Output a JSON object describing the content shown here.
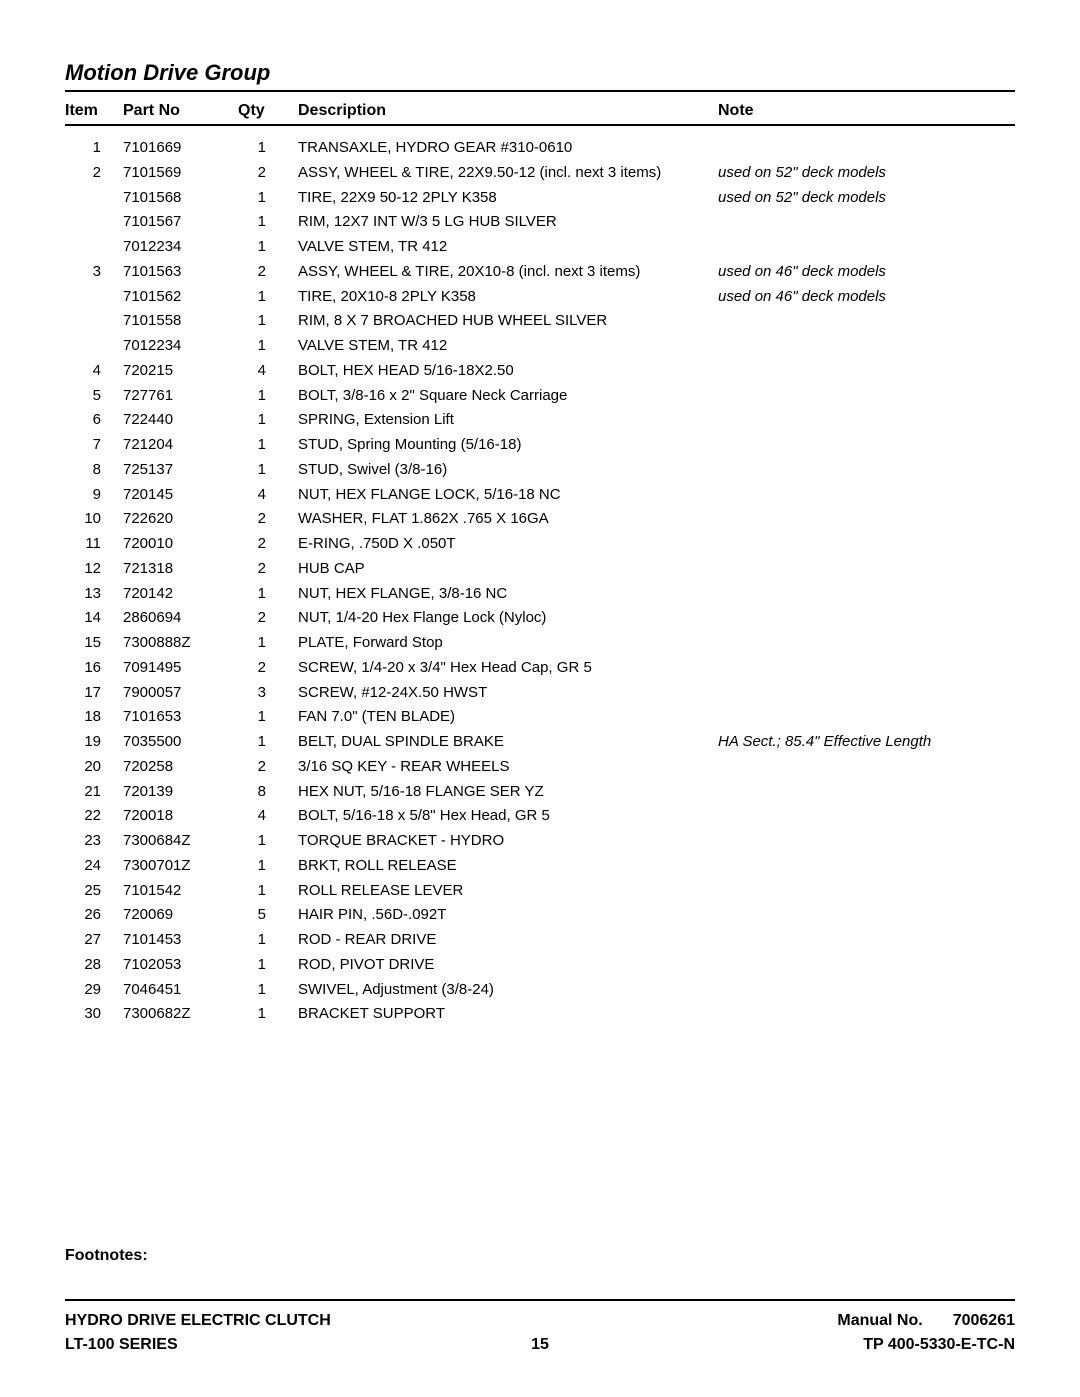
{
  "title": "Motion Drive Group",
  "columns": {
    "item": "Item",
    "partno": "Part No",
    "qty": "Qty",
    "description": "Description",
    "note": "Note"
  },
  "rows": [
    {
      "item": "1",
      "partno": "7101669",
      "qty": "1",
      "desc": "TRANSAXLE, HYDRO GEAR #310-0610",
      "note": ""
    },
    {
      "item": "2",
      "partno": "7101569",
      "qty": "2",
      "desc": "ASSY, WHEEL & TIRE, 22X9.50-12 (incl. next 3 items)",
      "note": "used on 52\" deck models"
    },
    {
      "item": "",
      "partno": "7101568",
      "qty": "1",
      "desc": "TIRE, 22X9 50-12 2PLY K358",
      "note": "used on 52\" deck models"
    },
    {
      "item": "",
      "partno": "7101567",
      "qty": "1",
      "desc": "RIM, 12X7 INT W/3 5 LG HUB SILVER",
      "note": ""
    },
    {
      "item": "",
      "partno": "7012234",
      "qty": "1",
      "desc": "VALVE STEM, TR 412",
      "note": ""
    },
    {
      "item": "3",
      "partno": "7101563",
      "qty": "2",
      "desc": "ASSY, WHEEL & TIRE, 20X10-8 (incl. next 3 items)",
      "note": "used on 46\" deck models"
    },
    {
      "item": "",
      "partno": "7101562",
      "qty": "1",
      "desc": "TIRE, 20X10-8 2PLY K358",
      "note": "used on 46\" deck models"
    },
    {
      "item": "",
      "partno": "7101558",
      "qty": "1",
      "desc": "RIM, 8 X 7 BROACHED HUB WHEEL SILVER",
      "note": ""
    },
    {
      "item": "",
      "partno": "7012234",
      "qty": "1",
      "desc": "VALVE STEM, TR 412",
      "note": ""
    },
    {
      "item": "4",
      "partno": "720215",
      "qty": "4",
      "desc": "BOLT, HEX HEAD 5/16-18X2.50",
      "note": ""
    },
    {
      "item": "5",
      "partno": "727761",
      "qty": "1",
      "desc": "BOLT, 3/8-16 x 2\" Square Neck Carriage",
      "note": ""
    },
    {
      "item": "6",
      "partno": "722440",
      "qty": "1",
      "desc": "SPRING, Extension Lift",
      "note": ""
    },
    {
      "item": "7",
      "partno": "721204",
      "qty": "1",
      "desc": "STUD, Spring Mounting (5/16-18)",
      "note": ""
    },
    {
      "item": "8",
      "partno": "725137",
      "qty": "1",
      "desc": "STUD, Swivel (3/8-16)",
      "note": ""
    },
    {
      "item": "9",
      "partno": "720145",
      "qty": "4",
      "desc": "NUT, HEX FLANGE LOCK, 5/16-18 NC",
      "note": ""
    },
    {
      "item": "10",
      "partno": "722620",
      "qty": "2",
      "desc": "WASHER, FLAT 1.862X .765 X 16GA",
      "note": ""
    },
    {
      "item": "11",
      "partno": "720010",
      "qty": "2",
      "desc": "E-RING, .750D X .050T",
      "note": ""
    },
    {
      "item": "12",
      "partno": "721318",
      "qty": "2",
      "desc": "HUB CAP",
      "note": ""
    },
    {
      "item": "13",
      "partno": "720142",
      "qty": "1",
      "desc": "NUT, HEX FLANGE, 3/8-16 NC",
      "note": ""
    },
    {
      "item": "14",
      "partno": "2860694",
      "qty": "2",
      "desc": "NUT, 1/4-20 Hex Flange Lock (Nyloc)",
      "note": ""
    },
    {
      "item": "15",
      "partno": "7300888Z",
      "qty": "1",
      "desc": "PLATE, Forward Stop",
      "note": ""
    },
    {
      "item": "16",
      "partno": "7091495",
      "qty": "2",
      "desc": "SCREW, 1/4-20 x 3/4\" Hex Head Cap, GR 5",
      "note": ""
    },
    {
      "item": "17",
      "partno": "7900057",
      "qty": "3",
      "desc": "SCREW, #12-24X.50 HWST",
      "note": ""
    },
    {
      "item": "18",
      "partno": "7101653",
      "qty": "1",
      "desc": "FAN 7.0\" (TEN BLADE)",
      "note": ""
    },
    {
      "item": "19",
      "partno": "7035500",
      "qty": "1",
      "desc": "BELT, DUAL SPINDLE BRAKE",
      "note": "HA Sect.; 85.4\" Effective Length"
    },
    {
      "item": "20",
      "partno": "720258",
      "qty": "2",
      "desc": "3/16 SQ KEY - REAR WHEELS",
      "note": ""
    },
    {
      "item": "21",
      "partno": "720139",
      "qty": "8",
      "desc": "HEX NUT, 5/16-18 FLANGE SER YZ",
      "note": ""
    },
    {
      "item": "22",
      "partno": "720018",
      "qty": "4",
      "desc": "BOLT, 5/16-18 x 5/8\" Hex Head, GR 5",
      "note": ""
    },
    {
      "item": "23",
      "partno": "7300684Z",
      "qty": "1",
      "desc": "TORQUE BRACKET - HYDRO",
      "note": ""
    },
    {
      "item": "24",
      "partno": "7300701Z",
      "qty": "1",
      "desc": "BRKT, ROLL RELEASE",
      "note": ""
    },
    {
      "item": "25",
      "partno": "7101542",
      "qty": "1",
      "desc": "ROLL RELEASE LEVER",
      "note": ""
    },
    {
      "item": "26",
      "partno": "720069",
      "qty": "5",
      "desc": "HAIR PIN, .56D-.092T",
      "note": ""
    },
    {
      "item": "27",
      "partno": "7101453",
      "qty": "1",
      "desc": "ROD - REAR DRIVE",
      "note": ""
    },
    {
      "item": "28",
      "partno": "7102053",
      "qty": "1",
      "desc": "ROD, PIVOT DRIVE",
      "note": ""
    },
    {
      "item": "29",
      "partno": "7046451",
      "qty": "1",
      "desc": "SWIVEL, Adjustment (3/8-24)",
      "note": ""
    },
    {
      "item": "30",
      "partno": "7300682Z",
      "qty": "1",
      "desc": "BRACKET SUPPORT",
      "note": ""
    }
  ],
  "footnotes_label": "Footnotes:",
  "footer": {
    "left1": "HYDRO DRIVE ELECTRIC CLUTCH",
    "left2": "LT-100 SERIES",
    "page": "15",
    "manual_label": "Manual No.",
    "manual_no": "7006261",
    "tp": "TP 400-5330-E-TC-N"
  }
}
